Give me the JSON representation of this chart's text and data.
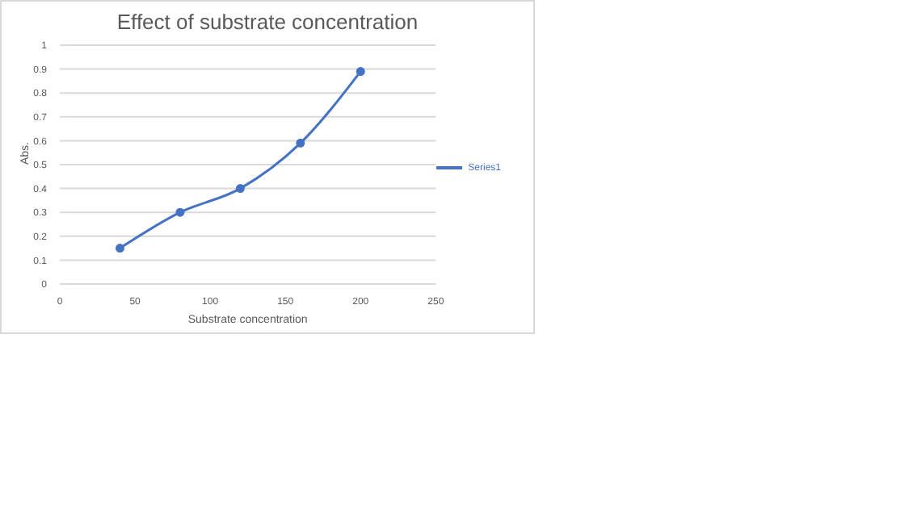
{
  "chart_data": {
    "type": "line",
    "title": "Effect of substrate concentration",
    "xlabel": "Substrate concentration",
    "ylabel": "Abs.",
    "x": [
      40,
      80,
      120,
      160,
      200
    ],
    "series": [
      {
        "name": "Series1",
        "color": "#4472c4",
        "values": [
          0.15,
          0.3,
          0.4,
          0.59,
          0.89
        ]
      }
    ],
    "xlim": [
      0,
      250
    ],
    "xticks": [
      0,
      50,
      100,
      150,
      200,
      250
    ],
    "ylim": [
      0,
      1
    ],
    "yticks": [
      0,
      0.1,
      0.2,
      0.3,
      0.4,
      0.5,
      0.6,
      0.7,
      0.8,
      0.9,
      1
    ],
    "grid": "y",
    "legend": "right",
    "marker": "circle",
    "line_style": "solid"
  }
}
